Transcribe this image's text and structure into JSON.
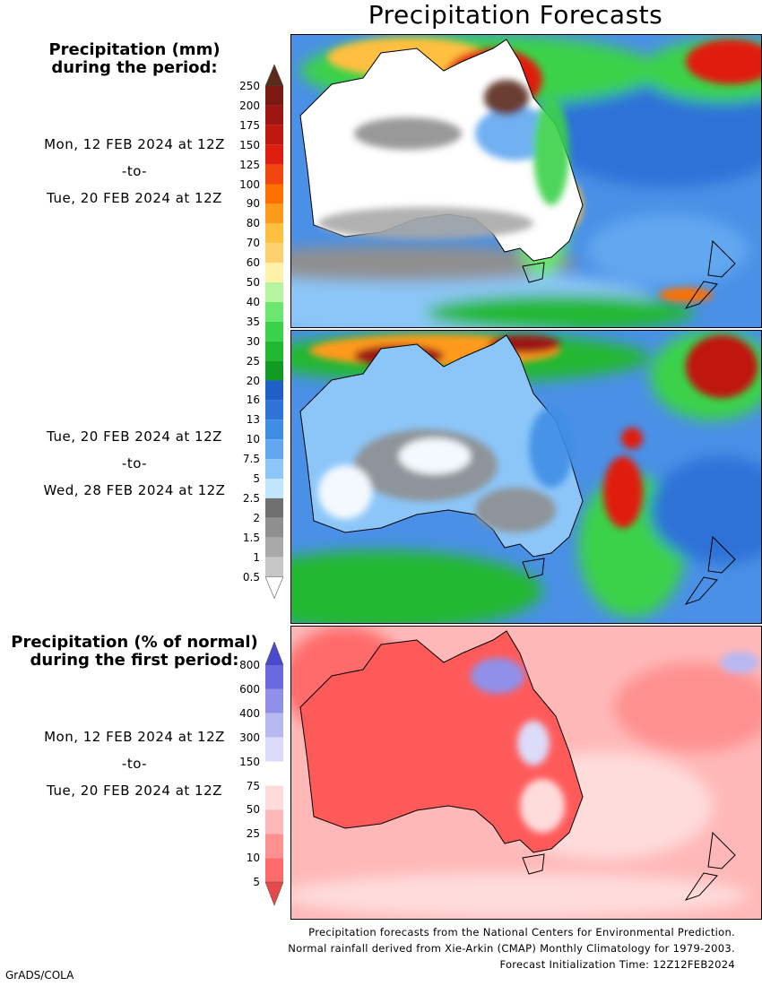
{
  "title": "Precipitation Forecasts",
  "legend_mm": {
    "heading_line1": "Precipitation (mm)",
    "heading_line2": "during the period:",
    "ticks": [
      "250",
      "200",
      "175",
      "150",
      "125",
      "100",
      "90",
      "80",
      "70",
      "60",
      "50",
      "40",
      "35",
      "30",
      "25",
      "20",
      "16",
      "13",
      "10",
      "7.5",
      "5",
      "2.5",
      "2",
      "1.5",
      "1",
      "0.5"
    ],
    "colors": [
      "#5a2a1c",
      "#7c1a12",
      "#9d1612",
      "#bf1810",
      "#e01e10",
      "#f2460e",
      "#ff6f00",
      "#ff9a1a",
      "#ffbf40",
      "#ffd070",
      "#fff2a8",
      "#b6f5a0",
      "#6be66e",
      "#3ad24a",
      "#20b830",
      "#119a22",
      "#1f60c8",
      "#2f72d8",
      "#3f8ee6",
      "#62a8f0",
      "#8cc6f8",
      "#bfe6fb",
      "#6f6f6f",
      "#8f8f8f",
      "#a9a9a9",
      "#c6c6c6",
      "#ffffff"
    ]
  },
  "period1": {
    "start": "Mon, 12 FEB 2024 at 12Z",
    "sep": "-to-",
    "end": "Tue, 20 FEB 2024 at 12Z"
  },
  "period2": {
    "start": "Tue, 20 FEB 2024 at 12Z",
    "sep": "-to-",
    "end": "Wed, 28 FEB 2024 at 12Z"
  },
  "legend_pct": {
    "heading_line1": "Precipitation (% of normal)",
    "heading_line2": "during the first period:",
    "ticks": [
      "800",
      "600",
      "400",
      "300",
      "150",
      "75",
      "50",
      "25",
      "10",
      "5"
    ],
    "colors": [
      "#4a4ad0",
      "#6a6ae0",
      "#9090ea",
      "#b8b8f2",
      "#dcdcfa",
      "#ffffff",
      "#ffdcdc",
      "#ffb8b8",
      "#ff9090",
      "#ff6a6a",
      "#e84848"
    ]
  },
  "period3": {
    "start": "Mon, 12 FEB 2024 at 12Z",
    "sep": "-to-",
    "end": "Tue, 20 FEB 2024 at 12Z"
  },
  "footer": {
    "line1": "Precipitation forecasts from the National Centers for Environmental Prediction.",
    "line2": "Normal rainfall derived from Xie-Arkin (CMAP) Monthly Climatology for 1979-2003.",
    "line3": "Forecast Initialization Time: 12Z12FEB2024"
  },
  "credit": "GrADS/COLA"
}
